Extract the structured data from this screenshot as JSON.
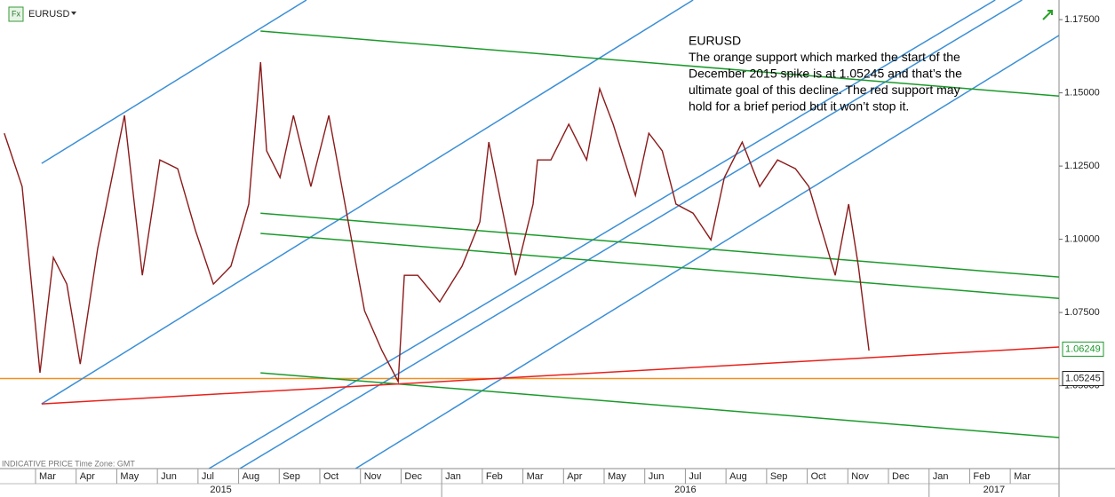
{
  "symbol_icon": "Fx",
  "footer": "INDICATIVE PRICE   Time Zone: GMT",
  "chart_data": {
    "type": "line",
    "annotation": [
      "EURUSD",
      "The orange support which marked the start of the",
      "December 2015 spike is at 1.05245 and that’s the",
      "ultimate goal of this decline. The red support may",
      "hold for a brief period but it won’t stop it."
    ],
    "x": [
      1.23,
      1.67,
      2.11,
      2.44,
      2.77,
      3.1,
      3.53,
      4.19,
      4.63,
      5.06,
      5.5,
      5.94,
      6.38,
      6.81,
      7.25,
      7.54,
      7.69,
      8.02,
      8.35,
      8.78,
      9.22,
      9.66,
      10.1,
      10.53,
      10.93,
      11.08,
      11.41,
      11.95,
      12.5,
      12.94,
      13.16,
      13.82,
      14.25,
      14.36,
      14.69,
      15.13,
      15.57,
      15.89,
      16.22,
      16.77,
      17.1,
      17.43,
      17.77,
      18.19,
      18.63,
      18.96,
      19.4,
      19.83,
      20.27,
      20.71,
      21.04,
      21.69,
      22.02,
      22.26,
      22.52
    ],
    "series": [
      {
        "name": "EURUSD",
        "color": "#8b1a1a",
        "values": [
          1.1362,
          1.118,
          1.0544,
          1.0938,
          1.0847,
          1.0574,
          1.0968,
          1.1423,
          1.0877,
          1.1271,
          1.1241,
          1.1029,
          1.0847,
          1.0908,
          1.112,
          1.1605,
          1.1302,
          1.1211,
          1.1423,
          1.118,
          1.1423,
          1.1089,
          1.0756,
          1.062,
          1.0514,
          1.0877,
          1.0877,
          1.0786,
          1.0908,
          1.1059,
          1.1332,
          1.0877,
          1.112,
          1.1271,
          1.1271,
          1.1393,
          1.1271,
          1.1514,
          1.1393,
          1.115,
          1.1362,
          1.1302,
          1.112,
          1.1089,
          1.0998,
          1.1211,
          1.1332,
          1.118,
          1.1271,
          1.1241,
          1.118,
          1.0877,
          1.112,
          1.0908,
          1.062
        ]
      }
    ],
    "xlim": [
      1.125,
      27.2
    ],
    "ylim": [
      1.0217,
      1.1817
    ],
    "xticks": [
      {
        "value": 2,
        "label": "Mar"
      },
      {
        "value": 3,
        "label": "Apr"
      },
      {
        "value": 4,
        "label": "May"
      },
      {
        "value": 5,
        "label": "Jun"
      },
      {
        "value": 6,
        "label": "Jul"
      },
      {
        "value": 7,
        "label": "Aug"
      },
      {
        "value": 8,
        "label": "Sep"
      },
      {
        "value": 9,
        "label": "Oct"
      },
      {
        "value": 10,
        "label": "Nov"
      },
      {
        "value": 11,
        "label": "Dec"
      },
      {
        "value": 12,
        "label": "Jan"
      },
      {
        "value": 13,
        "label": "Feb"
      },
      {
        "value": 14,
        "label": "Mar"
      },
      {
        "value": 15,
        "label": "Apr"
      },
      {
        "value": 16,
        "label": "May"
      },
      {
        "value": 17,
        "label": "Jun"
      },
      {
        "value": 18,
        "label": "Jul"
      },
      {
        "value": 19,
        "label": "Aug"
      },
      {
        "value": 20,
        "label": "Sep"
      },
      {
        "value": 21,
        "label": "Oct"
      },
      {
        "value": 22,
        "label": "Nov"
      },
      {
        "value": 23,
        "label": "Dec"
      },
      {
        "value": 24,
        "label": "Jan"
      },
      {
        "value": 25,
        "label": "Feb"
      },
      {
        "value": 26,
        "label": "Mar"
      }
    ],
    "years": [
      {
        "value": 0,
        "label": "2015"
      },
      {
        "value": 12,
        "label": "2016"
      },
      {
        "value": 24,
        "label": "2017"
      }
    ],
    "yticks": [
      {
        "value": 1.175,
        "label": "1.17500"
      },
      {
        "value": 1.15,
        "label": "1.15000"
      },
      {
        "value": 1.125,
        "label": "1.12500"
      },
      {
        "value": 1.1,
        "label": "1.10000"
      },
      {
        "value": 1.075,
        "label": "1.07500"
      },
      {
        "value": 1.05,
        "label": "1.05000"
      }
    ],
    "trendlines": [
      {
        "color": "#3b8fd6",
        "points": [
          [
            2.15,
            1.1259
          ],
          [
            8.67,
            1.1817
          ]
        ]
      },
      {
        "color": "#3b8fd6",
        "points": [
          [
            2.15,
            1.0438
          ],
          [
            18.19,
            1.1817
          ]
        ]
      },
      {
        "color": "#3b8fd6",
        "points": [
          [
            6.27,
            1.0217
          ],
          [
            25.63,
            1.1817
          ]
        ]
      },
      {
        "color": "#3b8fd6",
        "points": [
          [
            7.03,
            1.0217
          ],
          [
            26.29,
            1.1817
          ]
        ]
      },
      {
        "color": "#3b8fd6",
        "points": [
          [
            9.88,
            1.0217
          ],
          [
            27.2,
            1.1696
          ]
        ]
      },
      {
        "color": "#1a9a2a",
        "points": [
          [
            7.54,
            1.1711
          ],
          [
            27.2,
            1.1489
          ]
        ]
      },
      {
        "color": "#1a9a2a",
        "points": [
          [
            7.54,
            1.1089
          ],
          [
            27.2,
            1.0871
          ]
        ]
      },
      {
        "color": "#1a9a2a",
        "points": [
          [
            7.54,
            1.102
          ],
          [
            27.2,
            1.0798
          ]
        ]
      },
      {
        "color": "#1a9a2a",
        "points": [
          [
            7.54,
            1.0544
          ],
          [
            27.2,
            1.0323
          ]
        ]
      },
      {
        "color": "#e8201a",
        "points": [
          [
            2.15,
            1.0438
          ],
          [
            27.2,
            1.0632
          ]
        ]
      }
    ],
    "levels": [
      {
        "value": 1.05245,
        "color": "#f0901e"
      }
    ],
    "price_labels": [
      {
        "value": 1.06249,
        "color": "#1a9a2a"
      },
      {
        "value": 1.05245,
        "color": "#222222"
      }
    ]
  }
}
